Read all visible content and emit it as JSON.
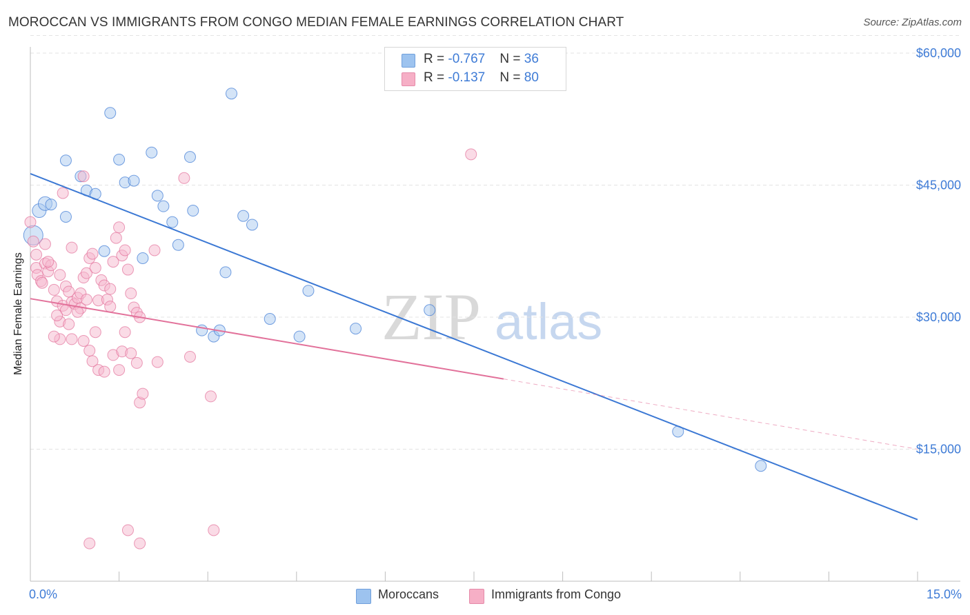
{
  "title": "MOROCCAN VS IMMIGRANTS FROM CONGO MEDIAN FEMALE EARNINGS CORRELATION CHART",
  "source": "Source: ZipAtlas.com",
  "watermark": {
    "zip": "ZIP",
    "atlas": "atlas"
  },
  "legend_top": [
    {
      "r_label": "R = ",
      "r_value": "-0.767",
      "n_label": "N = ",
      "n_value": "36",
      "color": "#9dc3ef"
    },
    {
      "r_label": "R = ",
      "r_value": "-0.137",
      "n_label": "N = ",
      "n_value": "80",
      "color": "#f6afc6"
    }
  ],
  "legend_bottom": [
    {
      "label": "Moroccans",
      "color": "#9dc3ef"
    },
    {
      "label": "Immigrants from Congo",
      "color": "#f6afc6"
    }
  ],
  "chart_data": {
    "type": "scatter",
    "title": "MOROCCAN VS IMMIGRANTS FROM CONGO MEDIAN FEMALE EARNINGS CORRELATION CHART",
    "xlabel": "",
    "ylabel": "Median Female Earnings",
    "xlim": [
      0,
      15
    ],
    "ylim": [
      0,
      62000
    ],
    "x_tick_labels": [
      "0.0%",
      "15.0%"
    ],
    "y_ticks": [
      15000,
      30000,
      45000,
      60000
    ],
    "y_tick_labels": [
      "$15,000",
      "$30,000",
      "$45,000",
      "$60,000"
    ],
    "grid": true,
    "legend_position": "top-center",
    "series": [
      {
        "name": "Moroccans",
        "color": "#3b78d4",
        "fill": "#a9c9f0",
        "R": -0.767,
        "N": 36,
        "points": [
          [
            0.05,
            39300
          ],
          [
            0.15,
            42100
          ],
          [
            0.25,
            42900
          ],
          [
            0.35,
            42800
          ],
          [
            0.6,
            47800
          ],
          [
            0.85,
            46000
          ],
          [
            0.95,
            44400
          ],
          [
            1.1,
            44000
          ],
          [
            0.6,
            41400
          ],
          [
            1.35,
            53200
          ],
          [
            1.5,
            47900
          ],
          [
            1.6,
            45300
          ],
          [
            1.75,
            45500
          ],
          [
            2.05,
            48700
          ],
          [
            2.15,
            43800
          ],
          [
            2.25,
            42600
          ],
          [
            2.4,
            40800
          ],
          [
            2.5,
            38200
          ],
          [
            2.7,
            48200
          ],
          [
            2.75,
            42100
          ],
          [
            1.25,
            37500
          ],
          [
            1.9,
            36700
          ],
          [
            3.4,
            55400
          ],
          [
            3.6,
            41500
          ],
          [
            3.75,
            40500
          ],
          [
            3.3,
            35100
          ],
          [
            4.7,
            33000
          ],
          [
            4.05,
            29800
          ],
          [
            2.9,
            28500
          ],
          [
            3.1,
            27800
          ],
          [
            3.2,
            28500
          ],
          [
            4.55,
            27800
          ],
          [
            5.5,
            28700
          ],
          [
            6.75,
            30800
          ],
          [
            10.95,
            17000
          ],
          [
            12.35,
            13100
          ]
        ],
        "trend": {
          "x0": 0,
          "y0": 46300,
          "x1": 15,
          "y1": 7000,
          "solid_to": 15
        }
      },
      {
        "name": "Immigrants from Congo",
        "color": "#e2719a",
        "fill": "#f6b8cd",
        "R": -0.137,
        "N": 80,
        "points": [
          [
            0.0,
            40800
          ],
          [
            0.05,
            38600
          ],
          [
            0.1,
            37100
          ],
          [
            0.1,
            35600
          ],
          [
            0.12,
            34800
          ],
          [
            0.18,
            34100
          ],
          [
            0.2,
            33900
          ],
          [
            0.25,
            36100
          ],
          [
            0.3,
            35200
          ],
          [
            0.35,
            35900
          ],
          [
            0.4,
            33100
          ],
          [
            0.45,
            31800
          ],
          [
            0.5,
            29500
          ],
          [
            0.55,
            31300
          ],
          [
            0.6,
            33500
          ],
          [
            0.65,
            32900
          ],
          [
            0.7,
            31700
          ],
          [
            0.75,
            31500
          ],
          [
            0.8,
            32200
          ],
          [
            0.85,
            32700
          ],
          [
            0.9,
            34500
          ],
          [
            0.95,
            35000
          ],
          [
            1.0,
            36700
          ],
          [
            1.05,
            37200
          ],
          [
            1.1,
            35600
          ],
          [
            1.15,
            31900
          ],
          [
            1.2,
            34200
          ],
          [
            1.25,
            33600
          ],
          [
            1.3,
            32000
          ],
          [
            1.35,
            31200
          ],
          [
            1.4,
            36300
          ],
          [
            1.45,
            39000
          ],
          [
            1.5,
            40200
          ],
          [
            1.55,
            37000
          ],
          [
            1.6,
            37600
          ],
          [
            1.65,
            35400
          ],
          [
            1.7,
            32700
          ],
          [
            1.75,
            31100
          ],
          [
            1.8,
            30500
          ],
          [
            1.85,
            30000
          ],
          [
            0.55,
            44100
          ],
          [
            0.9,
            46000
          ],
          [
            2.6,
            45800
          ],
          [
            7.45,
            48500
          ],
          [
            0.5,
            27500
          ],
          [
            0.7,
            27500
          ],
          [
            0.9,
            27300
          ],
          [
            1.0,
            26200
          ],
          [
            1.1,
            28300
          ],
          [
            0.85,
            31000
          ],
          [
            0.95,
            32000
          ],
          [
            1.05,
            25000
          ],
          [
            1.15,
            24000
          ],
          [
            1.25,
            23800
          ],
          [
            1.4,
            25700
          ],
          [
            1.5,
            24000
          ],
          [
            1.55,
            26100
          ],
          [
            1.6,
            28300
          ],
          [
            1.7,
            25900
          ],
          [
            1.8,
            24800
          ],
          [
            1.85,
            20300
          ],
          [
            1.9,
            21300
          ],
          [
            2.15,
            24900
          ],
          [
            2.7,
            25500
          ],
          [
            3.05,
            21000
          ],
          [
            0.4,
            27800
          ],
          [
            0.6,
            30800
          ],
          [
            1.35,
            33200
          ],
          [
            0.45,
            30200
          ],
          [
            0.65,
            29200
          ],
          [
            0.7,
            37900
          ],
          [
            0.8,
            30600
          ],
          [
            0.5,
            34800
          ],
          [
            0.3,
            36300
          ],
          [
            0.25,
            38300
          ],
          [
            1.0,
            4300
          ],
          [
            1.65,
            5800
          ],
          [
            1.85,
            4300
          ],
          [
            3.1,
            5800
          ],
          [
            2.1,
            37600
          ]
        ],
        "trend": {
          "x0": 0,
          "y0": 32100,
          "x1": 15,
          "y1": 15000,
          "solid_to": 8.0
        }
      }
    ]
  }
}
